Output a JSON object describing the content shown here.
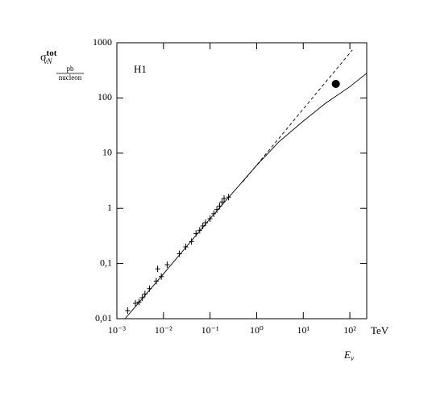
{
  "chart_data": {
    "type": "scatter",
    "y_label": {
      "symbol": "σ",
      "sub": "νN",
      "sup": "tot"
    },
    "y_unit": {
      "numerator": "pb",
      "denominator": "nucleon"
    },
    "x_label": {
      "symbol": "E",
      "sub": "ν"
    },
    "x_unit": "TeV",
    "annotation": "H1",
    "log_x": true,
    "log_y": true,
    "xlim": [
      0.001,
      230
    ],
    "ylim": [
      0.01,
      1000
    ],
    "xticks": [
      {
        "value": 0.001,
        "label": "10⁻³"
      },
      {
        "value": 0.01,
        "label": "10⁻²"
      },
      {
        "value": 0.1,
        "label": "10⁻¹"
      },
      {
        "value": 1,
        "label": "10⁰"
      },
      {
        "value": 10,
        "label": "10¹"
      },
      {
        "value": 100,
        "label": "10²"
      }
    ],
    "yticks": [
      {
        "value": 0.01,
        "label": "0,01"
      },
      {
        "value": 0.1,
        "label": "0,1"
      },
      1,
      10,
      100,
      1000
    ],
    "series": [
      {
        "style": "cross",
        "color": "#000",
        "x": [
          0.0017,
          0.0025,
          0.003,
          0.0035,
          0.004,
          0.005,
          0.007,
          0.0075,
          0.009,
          0.012,
          0.022,
          0.03,
          0.04,
          0.05,
          0.06,
          0.07,
          0.08,
          0.1,
          0.12,
          0.14,
          0.16,
          0.18,
          0.2,
          0.25
        ],
        "values": [
          0.014,
          0.019,
          0.02,
          0.024,
          0.028,
          0.035,
          0.048,
          0.08,
          0.058,
          0.095,
          0.15,
          0.2,
          0.25,
          0.35,
          0.4,
          0.48,
          0.55,
          0.65,
          0.8,
          0.95,
          1.1,
          1.3,
          1.5,
          1.6
        ]
      },
      {
        "style": "dot",
        "color": "#000",
        "x": [
          50
        ],
        "values": [
          180
        ]
      },
      {
        "style": "solid",
        "color": "#000",
        "x": [
          0.0015,
          0.01,
          0.1,
          1,
          3,
          10,
          30,
          100,
          230
        ],
        "values": [
          0.01,
          0.065,
          0.65,
          6,
          16,
          38,
          80,
          160,
          280
        ]
      },
      {
        "style": "dashed",
        "color": "#000",
        "x": [
          0.5,
          113
        ],
        "values": [
          3,
          740
        ]
      }
    ]
  }
}
